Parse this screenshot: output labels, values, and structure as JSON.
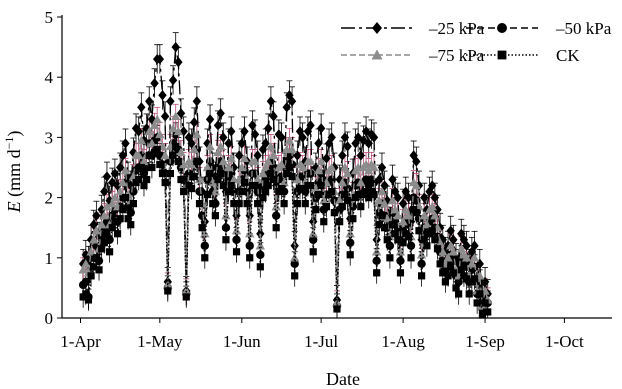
{
  "chart_data": {
    "type": "line",
    "title": "",
    "xlabel": "Date",
    "ylabel": {
      "symbol": "E",
      "unit_pre": " (mm d",
      "unit_sup": "−1",
      "unit_post": ")"
    },
    "ylim": [
      0,
      5
    ],
    "yticks": [
      "0",
      "1",
      "2",
      "3",
      "4",
      "5"
    ],
    "xlim": [
      "2014-03-25",
      "2014-10-19"
    ],
    "xticks": [
      {
        "date": "2014-04-01",
        "label": "1-Apr"
      },
      {
        "date": "2014-05-01",
        "label": "1-May"
      },
      {
        "date": "2014-06-01",
        "label": "1-Jun"
      },
      {
        "date": "2014-07-01",
        "label": "1-Jul"
      },
      {
        "date": "2014-08-01",
        "label": "1-Aug"
      },
      {
        "date": "2014-09-01",
        "label": "1-Sep"
      },
      {
        "date": "2014-10-01",
        "label": "1-Oct"
      }
    ],
    "x_day_offset_note": "",
    "legend_position": "top-right",
    "error_bars": true,
    "dates_start": "2014-04-02",
    "series": [
      {
        "name": "–25 kPa",
        "marker": "diamond",
        "dash": "14,4,3,4",
        "color": "#000000",
        "err": 0.24,
        "values": [
          0.9,
          1.05,
          0.95,
          1.3,
          1.55,
          1.7,
          1.35,
          1.8,
          2.1,
          2.35,
          1.95,
          2.25,
          2.4,
          2.2,
          2.5,
          2.7,
          2.9,
          2.35,
          2.2,
          2.75,
          3.15,
          3.1,
          3.5,
          2.95,
          3.15,
          3.6,
          3.3,
          3.9,
          4.3,
          4.3,
          3.7,
          3.35,
          0.6,
          3.6,
          3.95,
          4.5,
          4.25,
          3.4,
          3.1,
          0.45,
          3.0,
          2.9,
          3.25,
          3.6,
          2.6,
          2.1,
          1.6,
          2.9,
          3.3,
          2.5,
          2.35,
          3.2,
          3.4,
          3.0,
          2.1,
          2.9,
          3.1,
          2.5,
          1.7,
          2.7,
          2.9,
          3.1,
          2.6,
          1.7,
          3.2,
          3.05,
          2.7,
          1.4,
          2.8,
          2.9,
          3.15,
          3.6,
          3.35,
          2.2,
          3.05,
          3.0,
          2.5,
          3.5,
          3.7,
          3.6,
          1.2,
          2.7,
          3.1,
          3.0,
          2.6,
          3.1,
          3.2,
          1.6,
          2.5,
          2.9,
          3.15,
          2.3,
          2.65,
          2.9,
          3.0,
          2.5,
          0.3,
          2.3,
          2.7,
          3.0,
          2.85,
          1.65,
          2.4,
          2.9,
          3.0,
          2.7,
          2.95,
          3.1,
          2.9,
          3.05,
          3.0,
          1.3,
          2.3,
          2.5,
          2.2,
          1.95,
          1.6,
          2.3,
          2.1,
          2.0,
          1.3,
          1.9,
          2.1,
          2.0,
          1.6,
          2.7,
          2.6,
          2.2,
          1.3,
          2.0,
          1.8,
          2.1,
          2.2,
          2.0,
          1.8,
          1.5,
          1.3,
          1.1,
          1.2,
          1.45,
          1.3,
          1.0,
          0.9,
          1.4,
          1.3,
          1.2,
          0.9,
          1.1,
          1.2,
          0.6,
          0.9,
          0.3,
          0.6,
          0.4
        ]
      },
      {
        "name": "–50 kPa",
        "marker": "circle",
        "dash": "7,4",
        "color": "#000000",
        "err": 0.2,
        "values": [
          0.55,
          0.6,
          0.35,
          0.85,
          1.0,
          1.2,
          0.95,
          1.35,
          1.45,
          1.6,
          1.3,
          1.7,
          1.8,
          1.6,
          1.85,
          2.0,
          2.25,
          1.85,
          1.75,
          2.1,
          2.45,
          2.5,
          2.7,
          2.4,
          2.5,
          2.9,
          2.7,
          2.95,
          3.0,
          2.7,
          2.55,
          2.4,
          0.5,
          2.6,
          2.9,
          3.05,
          2.8,
          2.5,
          2.3,
          0.4,
          2.4,
          2.35,
          2.55,
          2.8,
          2.1,
          1.7,
          1.2,
          2.3,
          2.6,
          2.1,
          1.9,
          2.5,
          2.6,
          2.4,
          1.5,
          2.3,
          2.4,
          2.1,
          1.3,
          2.1,
          2.3,
          2.45,
          2.1,
          1.2,
          2.4,
          2.4,
          2.1,
          1.05,
          2.2,
          2.3,
          2.4,
          2.6,
          2.5,
          1.7,
          2.3,
          2.35,
          2.1,
          2.6,
          2.7,
          2.55,
          0.9,
          2.1,
          2.35,
          2.35,
          2.1,
          2.4,
          2.4,
          1.3,
          2.0,
          2.25,
          2.4,
          1.8,
          2.05,
          2.25,
          2.3,
          1.95,
          0.2,
          1.8,
          2.05,
          2.25,
          2.15,
          1.25,
          1.85,
          2.2,
          2.25,
          2.05,
          2.25,
          2.3,
          2.2,
          2.3,
          2.25,
          0.95,
          1.75,
          1.9,
          1.7,
          1.5,
          1.2,
          1.75,
          1.6,
          1.5,
          0.95,
          1.45,
          1.6,
          1.55,
          1.2,
          2.0,
          1.95,
          1.65,
          0.9,
          1.5,
          1.4,
          1.6,
          1.65,
          1.5,
          1.35,
          1.1,
          0.95,
          0.8,
          0.9,
          1.05,
          0.95,
          0.7,
          0.6,
          1.0,
          0.9,
          0.85,
          0.6,
          0.8,
          0.85,
          0.4,
          0.6,
          0.15,
          0.4,
          0.25
        ]
      },
      {
        "name": "–75 kPa",
        "marker": "triangle",
        "dash": "6,3",
        "color": "#8c8c8c",
        "err": 0.2,
        "values": [
          0.8,
          0.9,
          0.75,
          1.1,
          1.3,
          1.45,
          1.15,
          1.55,
          1.7,
          1.85,
          1.55,
          1.9,
          2.0,
          1.85,
          2.1,
          2.25,
          2.45,
          2.05,
          1.95,
          2.35,
          2.7,
          2.7,
          2.95,
          2.6,
          2.7,
          3.1,
          2.9,
          3.2,
          3.3,
          3.05,
          2.85,
          2.7,
          0.55,
          2.85,
          3.15,
          3.35,
          3.1,
          2.75,
          2.55,
          0.45,
          2.6,
          2.55,
          2.8,
          3.05,
          2.3,
          1.9,
          1.4,
          2.5,
          2.85,
          2.25,
          2.1,
          2.75,
          2.85,
          2.6,
          1.7,
          2.5,
          2.65,
          2.3,
          1.45,
          2.3,
          2.5,
          2.65,
          2.3,
          1.4,
          2.6,
          2.6,
          2.3,
          1.2,
          2.4,
          2.5,
          2.6,
          2.85,
          2.7,
          1.85,
          2.5,
          2.55,
          2.25,
          2.8,
          2.95,
          2.8,
          1.0,
          2.3,
          2.55,
          2.5,
          2.25,
          2.6,
          2.6,
          1.4,
          2.15,
          2.45,
          2.6,
          1.95,
          2.25,
          2.45,
          2.5,
          2.1,
          0.25,
          1.95,
          2.25,
          2.5,
          2.4,
          1.4,
          2.05,
          2.45,
          2.5,
          2.25,
          2.5,
          2.55,
          2.45,
          2.55,
          2.5,
          1.1,
          1.95,
          2.1,
          1.9,
          1.65,
          1.35,
          1.95,
          1.8,
          1.7,
          1.1,
          1.6,
          1.8,
          1.7,
          1.35,
          2.25,
          2.2,
          1.85,
          1.05,
          1.7,
          1.55,
          1.8,
          1.85,
          1.7,
          1.5,
          1.25,
          1.1,
          0.9,
          1.0,
          1.2,
          1.1,
          0.8,
          0.7,
          1.15,
          1.05,
          1.0,
          0.7,
          0.9,
          1.0,
          0.45,
          0.7,
          0.2,
          0.45,
          0.3
        ]
      },
      {
        "name": "CK",
        "marker": "square",
        "dash": "1.5,2",
        "color": "#000000",
        "err": 0.18,
        "values": [
          0.35,
          0.4,
          0.3,
          0.7,
          0.85,
          1.0,
          0.8,
          1.15,
          1.25,
          1.4,
          1.1,
          1.5,
          1.6,
          1.4,
          1.65,
          1.8,
          2.0,
          1.65,
          1.55,
          1.9,
          2.25,
          2.3,
          2.5,
          2.2,
          2.3,
          2.7,
          2.5,
          2.75,
          2.8,
          2.55,
          2.4,
          2.25,
          0.45,
          2.4,
          2.7,
          2.85,
          2.6,
          2.3,
          2.1,
          0.35,
          2.2,
          2.15,
          2.35,
          2.6,
          1.9,
          1.5,
          1.0,
          2.05,
          2.4,
          1.9,
          1.7,
          2.3,
          2.4,
          2.2,
          1.3,
          2.1,
          2.2,
          1.9,
          1.1,
          1.9,
          2.1,
          2.25,
          1.9,
          1.0,
          2.2,
          2.2,
          1.9,
          0.85,
          2.0,
          2.1,
          2.2,
          2.4,
          2.3,
          1.5,
          2.1,
          2.15,
          1.9,
          2.4,
          2.5,
          2.35,
          0.7,
          1.9,
          2.15,
          2.15,
          1.9,
          2.2,
          2.2,
          1.1,
          1.8,
          2.05,
          2.2,
          1.6,
          1.85,
          2.05,
          2.1,
          1.75,
          0.15,
          1.6,
          1.85,
          2.05,
          1.95,
          1.05,
          1.65,
          2.0,
          2.05,
          1.85,
          2.05,
          2.1,
          2.0,
          2.1,
          2.05,
          0.75,
          1.55,
          1.7,
          1.5,
          1.3,
          1.0,
          1.55,
          1.4,
          1.3,
          0.75,
          1.25,
          1.4,
          1.35,
          1.0,
          1.8,
          1.75,
          1.45,
          0.7,
          1.3,
          1.2,
          1.4,
          1.45,
          1.3,
          1.15,
          0.9,
          0.75,
          0.6,
          0.7,
          0.85,
          0.75,
          0.5,
          0.4,
          0.8,
          0.7,
          0.65,
          0.4,
          0.6,
          0.65,
          0.25,
          0.4,
          0.05,
          0.25,
          0.1
        ]
      }
    ]
  }
}
